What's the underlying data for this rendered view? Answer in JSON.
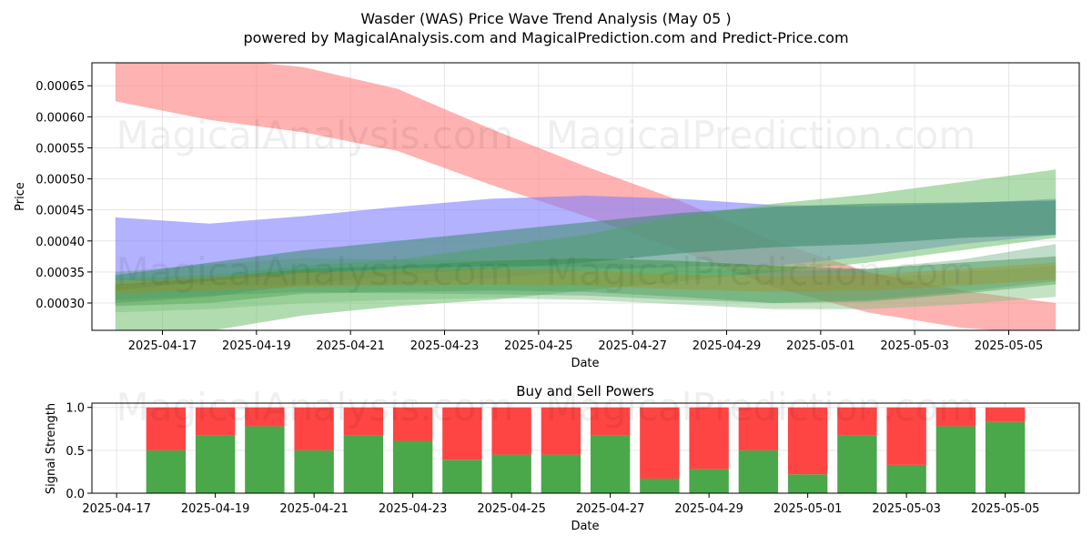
{
  "title_line1": "Wasder (WAS) Price Wave Trend Analysis (May 05 )",
  "title_line2": "powered by MagicalAnalysis.com and MagicalPrediction.com and Predict-Price.com",
  "watermarks": [
    "MagicalAnalysis.com",
    "MagicalPrediction.com"
  ],
  "chart_data": [
    {
      "type": "area",
      "xlabel": "Date",
      "ylabel": "Price",
      "xlim": [
        "2025-04-15T12:00",
        "2025-05-06T12:00"
      ],
      "ylim": [
        0.000256,
        0.000687
      ],
      "grid": true,
      "x_ticks": [
        "2025-04-17",
        "2025-04-19",
        "2025-04-21",
        "2025-04-23",
        "2025-04-25",
        "2025-04-27",
        "2025-04-29",
        "2025-05-01",
        "2025-05-03",
        "2025-05-05"
      ],
      "y_ticks": [
        0.0003,
        0.00035,
        0.0004,
        0.00045,
        0.0005,
        0.00055,
        0.0006,
        0.00065
      ],
      "y_tick_labels": [
        "0.00030",
        "0.00035",
        "0.00040",
        "0.00045",
        "0.00050",
        "0.00055",
        "0.00060",
        "0.00065"
      ],
      "x": [
        "2025-04-16",
        "2025-04-18",
        "2025-04-20",
        "2025-04-22",
        "2025-04-24",
        "2025-04-26",
        "2025-04-28",
        "2025-04-30",
        "2025-05-02",
        "2025-05-04",
        "2025-05-06"
      ],
      "bands": [
        {
          "color": "#ff7f7f",
          "opacity": 0.6,
          "upper": [
            0.0007,
            0.000695,
            0.00068,
            0.000645,
            0.00058,
            0.00052,
            0.000465,
            0.0004,
            0.00035,
            0.00032,
            0.0003
          ],
          "lower": [
            0.000625,
            0.000595,
            0.000575,
            0.000545,
            0.00049,
            0.00044,
            0.000385,
            0.000325,
            0.000285,
            0.00026,
            0.00025
          ]
        },
        {
          "color": "#7f7fff",
          "opacity": 0.6,
          "upper": [
            0.000438,
            0.000428,
            0.00044,
            0.000455,
            0.000468,
            0.000473,
            0.000468,
            0.000458,
            0.000456,
            0.00046,
            0.000468
          ],
          "lower": [
            0.000338,
            0.000328,
            0.000328,
            0.00033,
            0.00034,
            0.000353,
            0.000358,
            0.00036,
            0.000375,
            0.000395,
            0.00041
          ]
        },
        {
          "color": "#6fbf6f",
          "opacity": 0.55,
          "upper": [
            0.00034,
            0.000345,
            0.00036,
            0.00037,
            0.00039,
            0.00041,
            0.00044,
            0.00046,
            0.000475,
            0.000495,
            0.000515
          ],
          "lower": [
            0.00025,
            0.000255,
            0.00028,
            0.000295,
            0.000305,
            0.00032,
            0.000335,
            0.00035,
            0.000365,
            0.000385,
            0.000405
          ]
        },
        {
          "color": "#3a8a6a",
          "opacity": 0.55,
          "upper": [
            0.000345,
            0.000365,
            0.000385,
            0.0004,
            0.000415,
            0.00043,
            0.000445,
            0.000455,
            0.00046,
            0.000462,
            0.000465
          ],
          "lower": [
            0.0003,
            0.00031,
            0.00033,
            0.000345,
            0.000355,
            0.000365,
            0.00038,
            0.00039,
            0.000395,
            0.000405,
            0.00041
          ]
        },
        {
          "color": "#2e8b2e",
          "opacity": 0.45,
          "upper": [
            0.00033,
            0.00034,
            0.000355,
            0.00036,
            0.000368,
            0.000372,
            0.000368,
            0.00036,
            0.000355,
            0.000365,
            0.000375
          ],
          "lower": [
            0.000295,
            0.0003,
            0.000315,
            0.000318,
            0.00032,
            0.000318,
            0.00031,
            0.0003,
            0.000302,
            0.000315,
            0.00033
          ]
        },
        {
          "color": "#7fbf7f",
          "opacity": 0.45,
          "upper": [
            0.00032,
            0.000335,
            0.000348,
            0.000355,
            0.00036,
            0.000358,
            0.00035,
            0.000342,
            0.00034,
            0.00035,
            0.00036
          ],
          "lower": [
            0.000285,
            0.00029,
            0.0003,
            0.000305,
            0.000308,
            0.000305,
            0.000298,
            0.00029,
            0.00029,
            0.000298,
            0.00031
          ]
        },
        {
          "color": "#4a9a6a",
          "opacity": 0.35,
          "upper": [
            0.00035,
            0.000362,
            0.000372,
            0.00037,
            0.000368,
            0.000365,
            0.000358,
            0.000352,
            0.000355,
            0.00037,
            0.000395
          ],
          "lower": [
            0.000305,
            0.000312,
            0.000318,
            0.000316,
            0.000314,
            0.000312,
            0.000305,
            0.0003,
            0.000305,
            0.000318,
            0.000335
          ]
        },
        {
          "color": "#b8860b",
          "opacity": 0.3,
          "upper": [
            0.000335,
            0.000342,
            0.00035,
            0.000352,
            0.000355,
            0.000352,
            0.000346,
            0.000342,
            0.000345,
            0.000355,
            0.000365
          ],
          "lower": [
            0.000315,
            0.00032,
            0.000326,
            0.000328,
            0.00033,
            0.000328,
            0.000322,
            0.000318,
            0.00032,
            0.000328,
            0.000338
          ]
        }
      ]
    },
    {
      "type": "bar",
      "title": "Buy and Sell Powers",
      "xlabel": "Date",
      "ylabel": "Signal Strength",
      "ylim": [
        0,
        1.05
      ],
      "xlim": [
        "2025-04-16T12:00",
        "2025-05-06T12:00"
      ],
      "grid": true,
      "x_ticks": [
        "2025-04-17",
        "2025-04-19",
        "2025-04-21",
        "2025-04-23",
        "2025-04-25",
        "2025-04-27",
        "2025-04-29",
        "2025-05-01",
        "2025-05-03",
        "2025-05-05"
      ],
      "y_ticks": [
        0,
        0.5,
        1
      ],
      "y_tick_labels": [
        "0.0",
        "0.5",
        "1.0"
      ],
      "categories": [
        "2025-04-18",
        "2025-04-19",
        "2025-04-20",
        "2025-04-21",
        "2025-04-22",
        "2025-04-23",
        "2025-04-24",
        "2025-04-25",
        "2025-04-26",
        "2025-04-27",
        "2025-04-28",
        "2025-04-29",
        "2025-04-30",
        "2025-05-01",
        "2025-05-02",
        "2025-05-03",
        "2025-05-04",
        "2025-05-05"
      ],
      "series": [
        {
          "color": "#4aa74a",
          "values": [
            0.5,
            0.67,
            0.78,
            0.5,
            0.67,
            0.61,
            0.39,
            0.45,
            0.45,
            0.67,
            0.17,
            0.28,
            0.5,
            0.22,
            0.67,
            0.33,
            0.78,
            0.83
          ]
        },
        {
          "color": "#ff4444",
          "values": [
            0.5,
            0.33,
            0.22,
            0.5,
            0.33,
            0.39,
            0.61,
            0.55,
            0.55,
            0.33,
            0.83,
            0.72,
            0.5,
            0.78,
            0.33,
            0.67,
            0.22,
            0.17
          ]
        }
      ]
    }
  ]
}
